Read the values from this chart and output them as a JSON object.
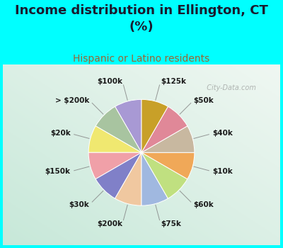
{
  "title": "Income distribution in Ellington, CT\n(%)",
  "subtitle": "Hispanic or Latino residents",
  "bg_cyan": "#00FFFF",
  "bg_chart_tl": "#e8f8f0",
  "bg_chart_br": "#c8e8d8",
  "labels": [
    "$100k",
    "> $200k",
    "$20k",
    "$150k",
    "$30k",
    "$200k",
    "$75k",
    "$60k",
    "$10k",
    "$40k",
    "$50k",
    "$125k"
  ],
  "sizes": [
    1,
    1,
    1,
    1,
    1,
    1,
    1,
    1,
    1,
    1,
    1,
    1
  ],
  "colors": [
    "#a899d4",
    "#a8c4a0",
    "#f0e870",
    "#f0a0a8",
    "#8080c8",
    "#f0c8a0",
    "#a0b8e0",
    "#c0e080",
    "#f0a858",
    "#c8b8a0",
    "#e08898",
    "#c8a028"
  ],
  "startangle": 90,
  "title_fontsize": 13,
  "subtitle_fontsize": 10,
  "label_fontsize": 7.5,
  "watermark": "  City-Data.com",
  "title_color": "#1a1a2e",
  "subtitle_color": "#996633",
  "label_color": "#1a1a1a"
}
